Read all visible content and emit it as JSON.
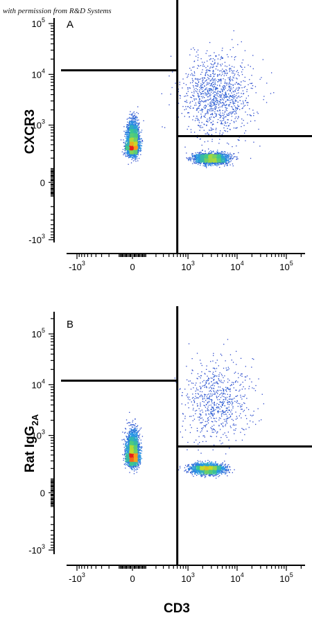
{
  "credit": "with permission from R&D Systems",
  "chart_data": [
    {
      "type": "scatter",
      "panel_label": "A",
      "title": "",
      "xlabel": "",
      "ylabel": "CXCR3",
      "ylabel_sub": "",
      "x_scale": "biexponential",
      "y_scale": "biexponential",
      "x_ticks": [
        {
          "value": -1000,
          "base": "-10",
          "exp": "3"
        },
        {
          "value": 0,
          "base": "0",
          "exp": ""
        },
        {
          "value": 1000,
          "base": "10",
          "exp": "3"
        },
        {
          "value": 10000,
          "base": "10",
          "exp": "4"
        },
        {
          "value": 100000,
          "base": "10",
          "exp": "5"
        }
      ],
      "y_ticks": [
        {
          "value": -1000,
          "base": "-10",
          "exp": "3"
        },
        {
          "value": 0,
          "base": "0",
          "exp": ""
        },
        {
          "value": 1000,
          "base": "10",
          "exp": "3"
        },
        {
          "value": 10000,
          "base": "10",
          "exp": "4"
        },
        {
          "value": 100000,
          "base": "10",
          "exp": "5"
        }
      ],
      "quadrant_gates": {
        "x": 600,
        "y_left": 12000,
        "y_right": 600
      },
      "populations": [
        {
          "x": 0,
          "y": 400,
          "sx": 0.06,
          "sy_low": 0.09,
          "sy_high": 0.22,
          "n": 4200
        },
        {
          "x": 3000,
          "y": 200,
          "sx": 0.16,
          "sy_low": 0.05,
          "sy_high": 0.05,
          "n": 2600
        },
        {
          "x": 4000,
          "y": 4000,
          "sx": 0.35,
          "sy_low": 0.4,
          "sy_high": 0.4,
          "n": 1100
        }
      ]
    },
    {
      "type": "scatter",
      "panel_label": "B",
      "title": "",
      "xlabel": "CD3",
      "ylabel": "Rat IgG",
      "ylabel_sub": "2A",
      "x_scale": "biexponential",
      "y_scale": "biexponential",
      "x_ticks": [
        {
          "value": -1000,
          "base": "-10",
          "exp": "3"
        },
        {
          "value": 0,
          "base": "0",
          "exp": ""
        },
        {
          "value": 1000,
          "base": "10",
          "exp": "3"
        },
        {
          "value": 10000,
          "base": "10",
          "exp": "4"
        },
        {
          "value": 100000,
          "base": "10",
          "exp": "5"
        }
      ],
      "y_ticks": [
        {
          "value": -1000,
          "base": "-10",
          "exp": "3"
        },
        {
          "value": 0,
          "base": "0",
          "exp": ""
        },
        {
          "value": 1000,
          "base": "10",
          "exp": "3"
        },
        {
          "value": 10000,
          "base": "10",
          "exp": "4"
        },
        {
          "value": 100000,
          "base": "10",
          "exp": "5"
        }
      ],
      "quadrant_gates": {
        "x": 600,
        "y_left": 12000,
        "y_right": 600
      },
      "populations": [
        {
          "x": 0,
          "y": 400,
          "sx": 0.06,
          "sy_low": 0.09,
          "sy_high": 0.22,
          "n": 4200
        },
        {
          "x": 2500,
          "y": 200,
          "sx": 0.16,
          "sy_low": 0.05,
          "sy_high": 0.05,
          "n": 2600
        },
        {
          "x": 4000,
          "y": 5000,
          "sx": 0.35,
          "sy_low": 0.4,
          "sy_high": 0.4,
          "n": 700
        }
      ]
    }
  ]
}
